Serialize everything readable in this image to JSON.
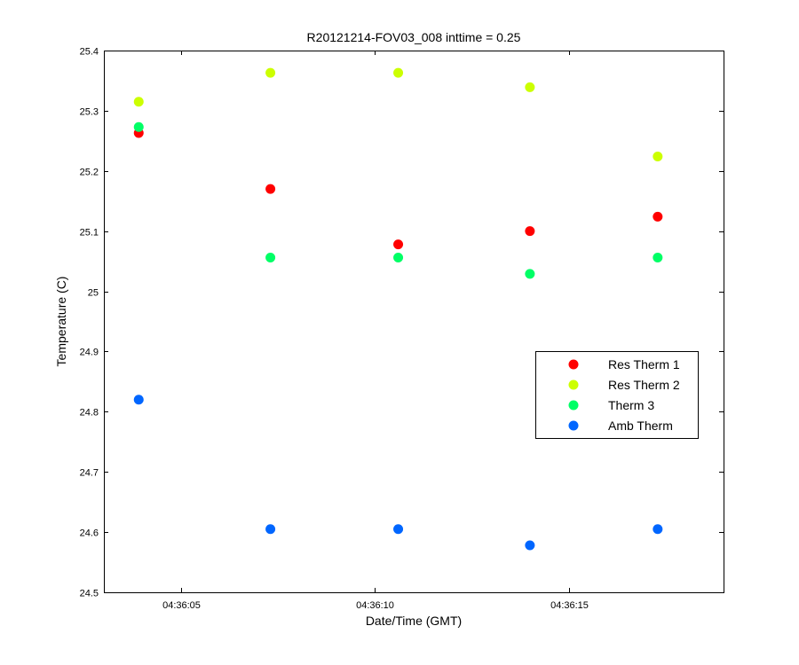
{
  "chart_data": {
    "type": "scatter",
    "title": "R20121214-FOV03_008 inttime = 0.25",
    "xlabel": "Date/Time (GMT)",
    "ylabel": "Temperature (C)",
    "xlim": [
      "04:36:03",
      "04:36:19"
    ],
    "ylim": [
      24.5,
      25.4
    ],
    "x_ticks": [
      "04:36:05",
      "04:36:10",
      "04:36:15"
    ],
    "y_ticks": [
      "24.5",
      "24.6",
      "24.7",
      "24.8",
      "24.9",
      "25",
      "25.1",
      "25.2",
      "25.3",
      "25.4"
    ],
    "grid": false,
    "legend_position": "right",
    "series": [
      {
        "name": "Res Therm 1",
        "color": "#ff0000",
        "points": [
          [
            "04:36:03.9",
            25.263
          ],
          [
            "04:36:07.3",
            25.17
          ],
          [
            "04:36:10.6",
            25.078
          ],
          [
            "04:36:14.0",
            25.1
          ],
          [
            "04:36:17.3",
            25.124
          ]
        ]
      },
      {
        "name": "Res Therm 2",
        "color": "#ccff00",
        "points": [
          [
            "04:36:03.9",
            25.315
          ],
          [
            "04:36:07.3",
            25.363
          ],
          [
            "04:36:10.6",
            25.363
          ],
          [
            "04:36:14.0",
            25.339
          ],
          [
            "04:36:17.3",
            25.224
          ]
        ]
      },
      {
        "name": "Therm 3",
        "color": "#00ff66",
        "points": [
          [
            "04:36:03.9",
            25.273
          ],
          [
            "04:36:07.3",
            25.056
          ],
          [
            "04:36:10.6",
            25.056
          ],
          [
            "04:36:14.0",
            25.029
          ],
          [
            "04:36:17.3",
            25.056
          ]
        ]
      },
      {
        "name": "Amb Therm",
        "color": "#0066ff",
        "points": [
          [
            "04:36:03.9",
            24.82
          ],
          [
            "04:36:07.3",
            24.605
          ],
          [
            "04:36:10.6",
            24.605
          ],
          [
            "04:36:14.0",
            24.578
          ],
          [
            "04:36:17.3",
            24.605
          ]
        ]
      }
    ]
  }
}
